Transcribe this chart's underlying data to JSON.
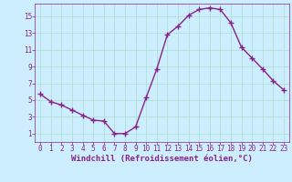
{
  "x": [
    0,
    1,
    2,
    3,
    4,
    5,
    6,
    7,
    8,
    9,
    10,
    11,
    12,
    13,
    14,
    15,
    16,
    17,
    18,
    19,
    20,
    21,
    22,
    23
  ],
  "y": [
    5.7,
    4.8,
    4.4,
    3.8,
    3.2,
    2.6,
    2.5,
    1.0,
    1.0,
    1.8,
    5.3,
    8.7,
    12.8,
    13.8,
    15.1,
    15.8,
    16.0,
    15.8,
    14.2,
    11.3,
    10.0,
    8.7,
    7.3,
    6.2
  ],
  "line_color": "#882288",
  "marker": "+",
  "marker_size": 4,
  "linewidth": 1.0,
  "bg_color": "#cceeff",
  "grid_color": "#aaddcc",
  "xlabel": "Windchill (Refroidissement éolien,°C)",
  "xlabel_color": "#882288",
  "xlabel_fontsize": 6.5,
  "tick_color": "#882288",
  "tick_fontsize": 5.5,
  "ylim": [
    0,
    16.5
  ],
  "xlim": [
    -0.5,
    23.5
  ],
  "yticks": [
    1,
    3,
    5,
    7,
    9,
    11,
    13,
    15
  ],
  "xticks": [
    0,
    1,
    2,
    3,
    4,
    5,
    6,
    7,
    8,
    9,
    10,
    11,
    12,
    13,
    14,
    15,
    16,
    17,
    18,
    19,
    20,
    21,
    22,
    23
  ]
}
